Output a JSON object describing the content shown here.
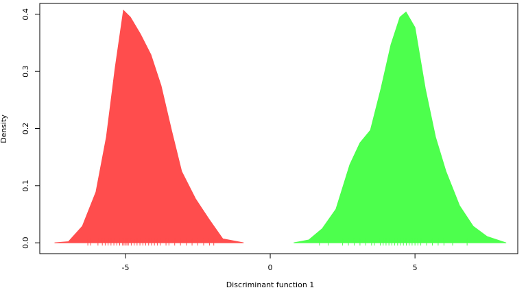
{
  "chart_data": {
    "type": "density",
    "xlabel": "Discriminant function 1",
    "ylabel": "Density",
    "xlim": [
      -7.96,
      8.55
    ],
    "ylim": [
      -0.019,
      0.419
    ],
    "xticks": [
      -5,
      0,
      5
    ],
    "yticks": [
      {
        "value": 0,
        "label": "0.0"
      },
      0.1,
      0.2,
      0.3,
      0.4
    ],
    "series": [
      {
        "color": "#ff4d4d",
        "x": [
          -7.45,
          -6.97,
          -6.49,
          -6.02,
          -5.66,
          -5.36,
          -5.07,
          -4.83,
          -4.48,
          -4.12,
          -3.77,
          -3.41,
          -3.06,
          -2.58,
          -2.11,
          -1.64,
          -0.92
        ],
        "values": [
          0,
          0.002,
          0.029,
          0.089,
          0.185,
          0.305,
          0.407,
          0.395,
          0.365,
          0.329,
          0.275,
          0.197,
          0.125,
          0.077,
          0.041,
          0.007,
          0
        ],
        "rug": [
          -6.3,
          -6.2,
          -5.95,
          -5.8,
          -5.7,
          -5.6,
          -5.5,
          -5.4,
          -5.3,
          -5.2,
          -5.1,
          -5.05,
          -5.0,
          -4.95,
          -4.9,
          -4.8,
          -4.7,
          -4.6,
          -4.5,
          -4.4,
          -4.3,
          -4.2,
          -4.1,
          -4.0,
          -3.9,
          -3.8,
          -3.6,
          -3.5,
          -3.3,
          -3.1,
          -2.9,
          -2.7,
          -2.5,
          -2.3,
          -2.1,
          -1.95
        ]
      },
      {
        "color": "#4dff4d",
        "x": [
          0.81,
          1.33,
          1.8,
          2.27,
          2.75,
          3.1,
          3.46,
          3.82,
          4.17,
          4.48,
          4.69,
          5.0,
          5.36,
          5.71,
          6.07,
          6.54,
          7.01,
          7.49,
          8.15
        ],
        "values": [
          0,
          0.005,
          0.025,
          0.059,
          0.137,
          0.175,
          0.197,
          0.269,
          0.347,
          0.395,
          0.404,
          0.377,
          0.269,
          0.185,
          0.125,
          0.065,
          0.029,
          0.011,
          0
        ],
        "rug": [
          1.7,
          2.0,
          2.5,
          2.7,
          2.9,
          3.1,
          3.3,
          3.5,
          3.6,
          3.8,
          3.9,
          4.0,
          4.1,
          4.2,
          4.3,
          4.4,
          4.5,
          4.6,
          4.7,
          4.8,
          4.9,
          5.0,
          5.1,
          5.2,
          5.4,
          5.6,
          5.8,
          6.0,
          6.3,
          6.8
        ]
      }
    ]
  }
}
